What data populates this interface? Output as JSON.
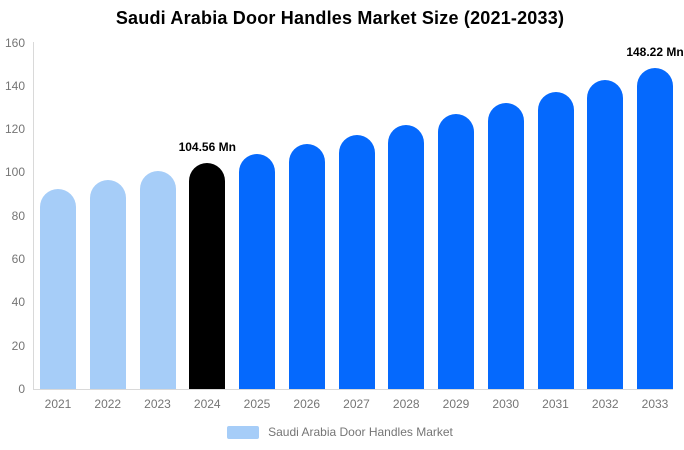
{
  "chart_data": {
    "type": "bar",
    "title": "Saudi Arabia Door Handles Market Size (2021-2033)",
    "categories": [
      "2021",
      "2022",
      "2023",
      "2024",
      "2025",
      "2026",
      "2027",
      "2028",
      "2029",
      "2030",
      "2031",
      "2032",
      "2033"
    ],
    "series": [
      {
        "name": "Saudi Arabia Door Handles Market",
        "values": [
          92.3,
          96.4,
          100.5,
          104.56,
          108.7,
          113.0,
          117.5,
          122.1,
          127.0,
          132.0,
          137.2,
          142.7,
          148.22
        ]
      }
    ],
    "unit": "Mn",
    "ylim": [
      0,
      160
    ],
    "y_ticks": [
      0,
      20,
      40,
      60,
      80,
      100,
      120,
      140,
      160
    ],
    "grid": false,
    "legend_position": "bottom",
    "annotations": [
      {
        "category": "2024",
        "text": "104.56 Mn"
      },
      {
        "category": "2033",
        "text": "148.22 Mn"
      }
    ],
    "bar_colors": [
      "#a6cdf8",
      "#a6cdf8",
      "#a6cdf8",
      "#000000",
      "#0569fd",
      "#0569fd",
      "#0569fd",
      "#0569fd",
      "#0569fd",
      "#0569fd",
      "#0569fd",
      "#0569fd",
      "#0569fd"
    ]
  },
  "legend": {
    "label": "Saudi Arabia Door Handles Market",
    "swatch_color": "#a6cdf8"
  },
  "colors": {
    "past_bars": "#a6cdf8",
    "highlight_bar": "#000000",
    "forecast_bars": "#0569fd",
    "axis_line": "#d9d9d9",
    "axis_text": "#757575",
    "title_text": "#000000"
  }
}
